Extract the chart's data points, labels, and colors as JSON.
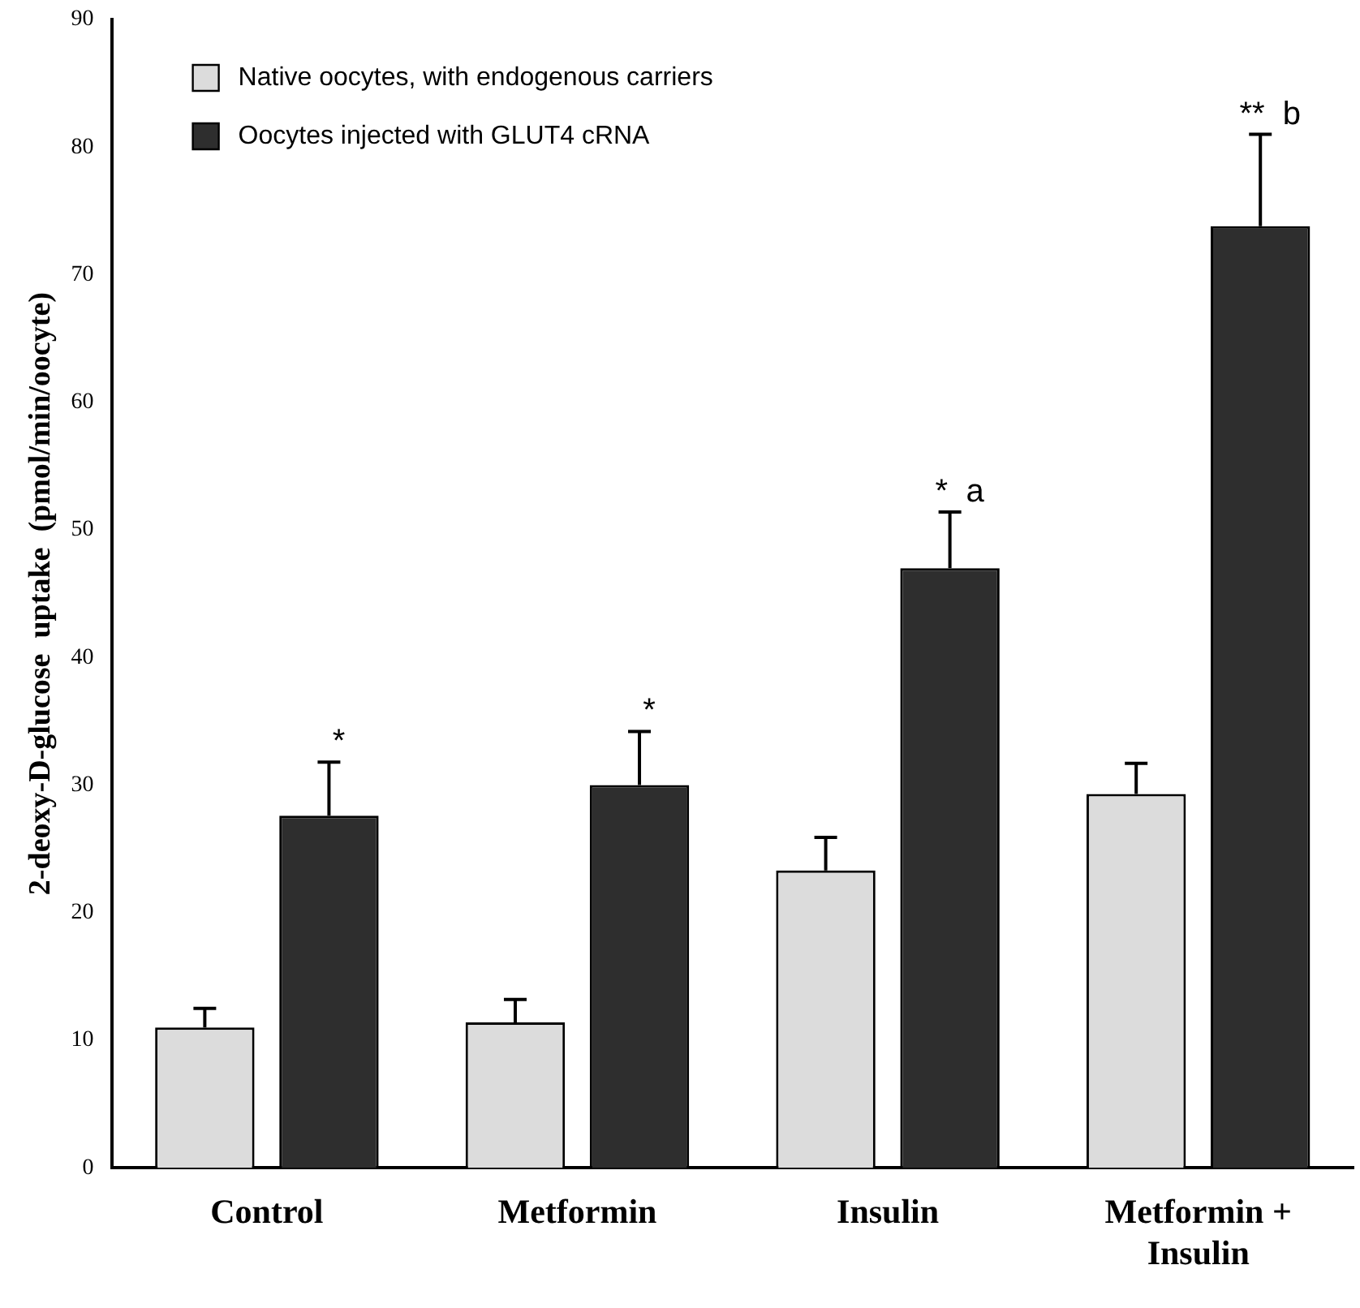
{
  "chart_data": {
    "type": "bar",
    "ylabel": "2-deoxy-D-glucose  uptake  (pmol/min/oocyte)",
    "categories": [
      "Control",
      "Metformin",
      "Insulin",
      "Metformin + Insulin"
    ],
    "series": [
      {
        "name": "Native oocytes, with endogenous carriers",
        "color": "#dcdcdc",
        "values": [
          11,
          11.4,
          23.3,
          29.3
        ],
        "errors": [
          [
            11,
            12.5
          ],
          [
            11.4,
            13.2
          ],
          [
            23.3,
            25.9
          ],
          [
            29.3,
            31.7
          ]
        ]
      },
      {
        "name": "Oocytes injected with GLUT4 cRNA",
        "color": "#2e2e2e",
        "values": [
          27.6,
          30,
          47,
          73.8
        ],
        "errors": [
          [
            27.6,
            31.8
          ],
          [
            30,
            34.2
          ],
          [
            47,
            51.4
          ],
          [
            73.8,
            81
          ]
        ]
      }
    ],
    "annotations": [
      "*",
      "*",
      "*  a",
      "**  b"
    ],
    "ylim": [
      0,
      90
    ],
    "yticks": [
      0,
      10,
      20,
      30,
      40,
      50,
      60,
      70,
      80,
      90
    ],
    "grid": false,
    "legend": "top left"
  }
}
